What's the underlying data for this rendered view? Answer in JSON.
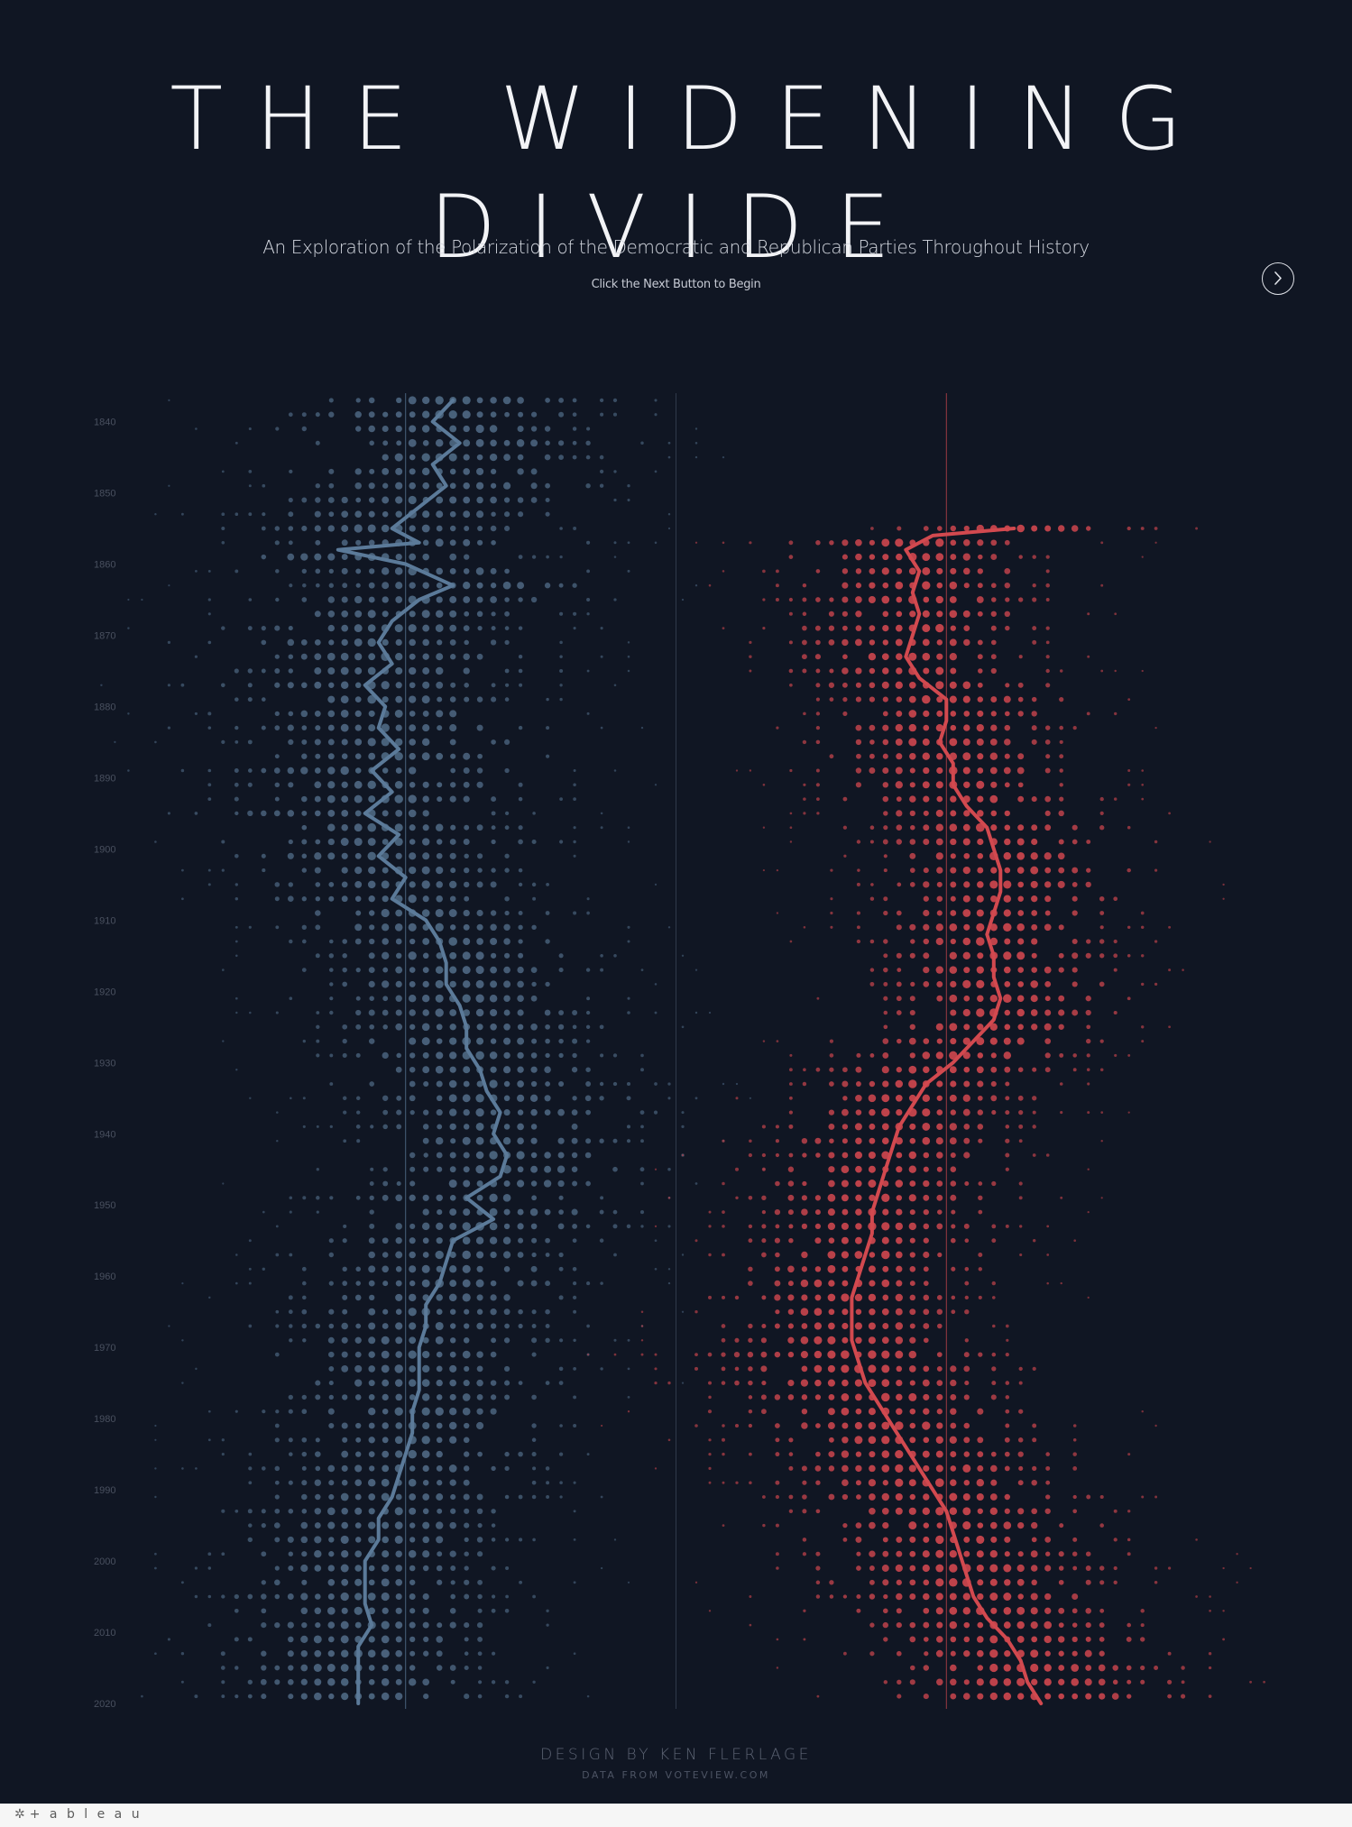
{
  "header": {
    "title": "THE WIDENING DIVIDE",
    "subtitle": "An Exploration of the Polarization of the Democratic and Republican Parties Throughout History",
    "instruction": "Click the Next Button to Begin"
  },
  "footer": {
    "credit": "DESIGN BY KEN FLERLAGE",
    "data_source": "DATA FROM VOTEVIEW.COM",
    "brand": "+ a b l e a u"
  },
  "icons": {
    "next": "chevron-right-icon",
    "brand": "tableau-logo-icon"
  },
  "colors": {
    "background": "#101623",
    "democrat": "#4c6580",
    "democrat_line": "#5b7a99",
    "republican": "#c9454d",
    "republican_line": "#d2494f",
    "reference_line": "#3a4558"
  },
  "chart_data": {
    "type": "scatter",
    "description_free": true,
    "y_axis": {
      "range": [
        1836,
        2020
      ],
      "ticks": [
        1840,
        1850,
        1860,
        1870,
        1880,
        1890,
        1900,
        1910,
        1920,
        1930,
        1940,
        1950,
        1960,
        1970,
        1980,
        1990,
        2000,
        2010,
        2020
      ]
    },
    "x_axis": {
      "range": [
        -1,
        1
      ]
    },
    "reference_lines": [
      -0.4,
      0,
      0.4
    ],
    "series": [
      {
        "party": "democrat",
        "start_year": 1837,
        "end_year": 2020,
        "median": [
          [
            1837,
            -0.33
          ],
          [
            1840,
            -0.36
          ],
          [
            1843,
            -0.32
          ],
          [
            1846,
            -0.36
          ],
          [
            1849,
            -0.34
          ],
          [
            1852,
            -0.38
          ],
          [
            1855,
            -0.42
          ],
          [
            1857,
            -0.38
          ],
          [
            1858,
            -0.5
          ],
          [
            1860,
            -0.4
          ],
          [
            1863,
            -0.33
          ],
          [
            1865,
            -0.38
          ],
          [
            1868,
            -0.42
          ],
          [
            1871,
            -0.44
          ],
          [
            1874,
            -0.42
          ],
          [
            1877,
            -0.46
          ],
          [
            1880,
            -0.43
          ],
          [
            1883,
            -0.44
          ],
          [
            1886,
            -0.41
          ],
          [
            1889,
            -0.45
          ],
          [
            1892,
            -0.42
          ],
          [
            1895,
            -0.46
          ],
          [
            1898,
            -0.41
          ],
          [
            1901,
            -0.44
          ],
          [
            1904,
            -0.4
          ],
          [
            1907,
            -0.42
          ],
          [
            1910,
            -0.37
          ],
          [
            1913,
            -0.35
          ],
          [
            1916,
            -0.34
          ],
          [
            1919,
            -0.34
          ],
          [
            1922,
            -0.32
          ],
          [
            1925,
            -0.31
          ],
          [
            1928,
            -0.31
          ],
          [
            1931,
            -0.29
          ],
          [
            1934,
            -0.28
          ],
          [
            1937,
            -0.26
          ],
          [
            1940,
            -0.27
          ],
          [
            1943,
            -0.25
          ],
          [
            1946,
            -0.26
          ],
          [
            1949,
            -0.31
          ],
          [
            1952,
            -0.27
          ],
          [
            1955,
            -0.33
          ],
          [
            1958,
            -0.34
          ],
          [
            1961,
            -0.35
          ],
          [
            1964,
            -0.37
          ],
          [
            1967,
            -0.37
          ],
          [
            1970,
            -0.38
          ],
          [
            1973,
            -0.38
          ],
          [
            1976,
            -0.38
          ],
          [
            1979,
            -0.39
          ],
          [
            1982,
            -0.39
          ],
          [
            1985,
            -0.4
          ],
          [
            1988,
            -0.41
          ],
          [
            1991,
            -0.42
          ],
          [
            1994,
            -0.44
          ],
          [
            1997,
            -0.44
          ],
          [
            2000,
            -0.46
          ],
          [
            2003,
            -0.46
          ],
          [
            2006,
            -0.46
          ],
          [
            2009,
            -0.45
          ],
          [
            2012,
            -0.47
          ],
          [
            2015,
            -0.47
          ],
          [
            2018,
            -0.47
          ],
          [
            2020,
            -0.47
          ]
        ]
      },
      {
        "party": "republican",
        "start_year": 1855,
        "end_year": 2020,
        "median": [
          [
            1855,
            0.5
          ],
          [
            1856,
            0.38
          ],
          [
            1858,
            0.34
          ],
          [
            1861,
            0.36
          ],
          [
            1864,
            0.35
          ],
          [
            1867,
            0.36
          ],
          [
            1870,
            0.35
          ],
          [
            1873,
            0.34
          ],
          [
            1876,
            0.36
          ],
          [
            1879,
            0.4
          ],
          [
            1882,
            0.4
          ],
          [
            1885,
            0.39
          ],
          [
            1888,
            0.41
          ],
          [
            1891,
            0.41
          ],
          [
            1894,
            0.43
          ],
          [
            1897,
            0.46
          ],
          [
            1900,
            0.47
          ],
          [
            1903,
            0.48
          ],
          [
            1906,
            0.48
          ],
          [
            1909,
            0.47
          ],
          [
            1912,
            0.46
          ],
          [
            1915,
            0.47
          ],
          [
            1918,
            0.47
          ],
          [
            1921,
            0.48
          ],
          [
            1924,
            0.47
          ],
          [
            1927,
            0.44
          ],
          [
            1930,
            0.41
          ],
          [
            1933,
            0.37
          ],
          [
            1936,
            0.35
          ],
          [
            1939,
            0.33
          ],
          [
            1942,
            0.32
          ],
          [
            1945,
            0.31
          ],
          [
            1948,
            0.3
          ],
          [
            1951,
            0.29
          ],
          [
            1954,
            0.29
          ],
          [
            1957,
            0.28
          ],
          [
            1960,
            0.27
          ],
          [
            1963,
            0.26
          ],
          [
            1966,
            0.26
          ],
          [
            1969,
            0.26
          ],
          [
            1972,
            0.27
          ],
          [
            1975,
            0.28
          ],
          [
            1978,
            0.3
          ],
          [
            1981,
            0.32
          ],
          [
            1984,
            0.34
          ],
          [
            1987,
            0.36
          ],
          [
            1990,
            0.38
          ],
          [
            1993,
            0.4
          ],
          [
            1996,
            0.41
          ],
          [
            1999,
            0.42
          ],
          [
            2002,
            0.43
          ],
          [
            2005,
            0.44
          ],
          [
            2008,
            0.46
          ],
          [
            2011,
            0.49
          ],
          [
            2014,
            0.51
          ],
          [
            2017,
            0.52
          ],
          [
            2020,
            0.54
          ]
        ]
      }
    ]
  }
}
